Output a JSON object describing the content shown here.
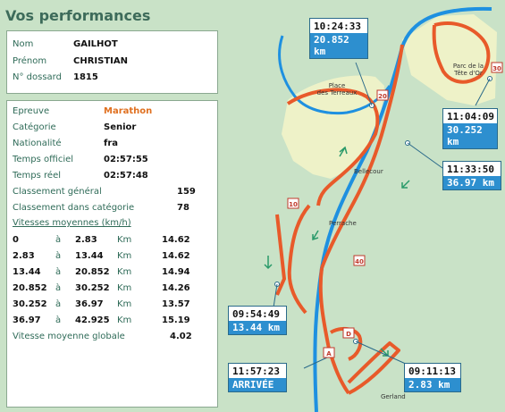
{
  "title": "Vos performances",
  "identity": [
    {
      "label": "Nom",
      "value": "GAILHOT"
    },
    {
      "label": "Prénom",
      "value": "CHRISTIAN"
    },
    {
      "label": "N° dossard",
      "value": "1815"
    }
  ],
  "result": [
    {
      "label": "Epreuve",
      "value": "Marathon"
    },
    {
      "label": "Catégorie",
      "value": "Senior"
    },
    {
      "label": "Nationalité",
      "value": "fra"
    },
    {
      "label": "Temps officiel",
      "value": "02:57:55"
    },
    {
      "label": "Temps réel",
      "value": "02:57:48"
    }
  ],
  "rankings": [
    {
      "label": "Classement général",
      "value": "159"
    },
    {
      "label": "Classement dans catégorie",
      "value": "78"
    }
  ],
  "speeds_header": "Vitesses moyennes (km/h)",
  "speeds": [
    {
      "from": "0",
      "a": "à",
      "to": "2.83",
      "unit": "Km",
      "speed": "14.62"
    },
    {
      "from": "2.83",
      "a": "à",
      "to": "13.44",
      "unit": "Km",
      "speed": "14.62"
    },
    {
      "from": "13.44",
      "a": "à",
      "to": "20.852",
      "unit": "Km",
      "speed": "14.94"
    },
    {
      "from": "20.852",
      "a": "à",
      "to": "30.252",
      "unit": "Km",
      "speed": "14.26"
    },
    {
      "from": "30.252",
      "a": "à",
      "to": "36.97",
      "unit": "Km",
      "speed": "13.57"
    },
    {
      "from": "36.97",
      "a": "à",
      "to": "42.925",
      "unit": "Km",
      "speed": "15.19"
    }
  ],
  "global_speed": {
    "label": "Vitesse moyenne globale",
    "value": "4.02"
  },
  "map": {
    "places": [
      "Place des Terreaux",
      "Parc de la Tête d'Or",
      "Bellecour",
      "Perrache",
      "Gerland"
    ],
    "markers": [
      "20",
      "30",
      "10",
      "40",
      "D",
      "A"
    ],
    "checkpoints": [
      {
        "time": "10:24:33",
        "dist": "20.852 km"
      },
      {
        "time": "11:04:09",
        "dist": "30.252 km"
      },
      {
        "time": "11:33:50",
        "dist": "36.97 km"
      },
      {
        "time": "09:54:49",
        "dist": "13.44 km"
      },
      {
        "time": "11:57:23",
        "dist": "ARRIVÉE"
      },
      {
        "time": "09:11:13",
        "dist": "2.83 km"
      }
    ]
  },
  "colors": {
    "accent": "#e07020",
    "river": "#1e90e0",
    "label": "#2f6b58",
    "box_blue": "#2d8fcf"
  }
}
